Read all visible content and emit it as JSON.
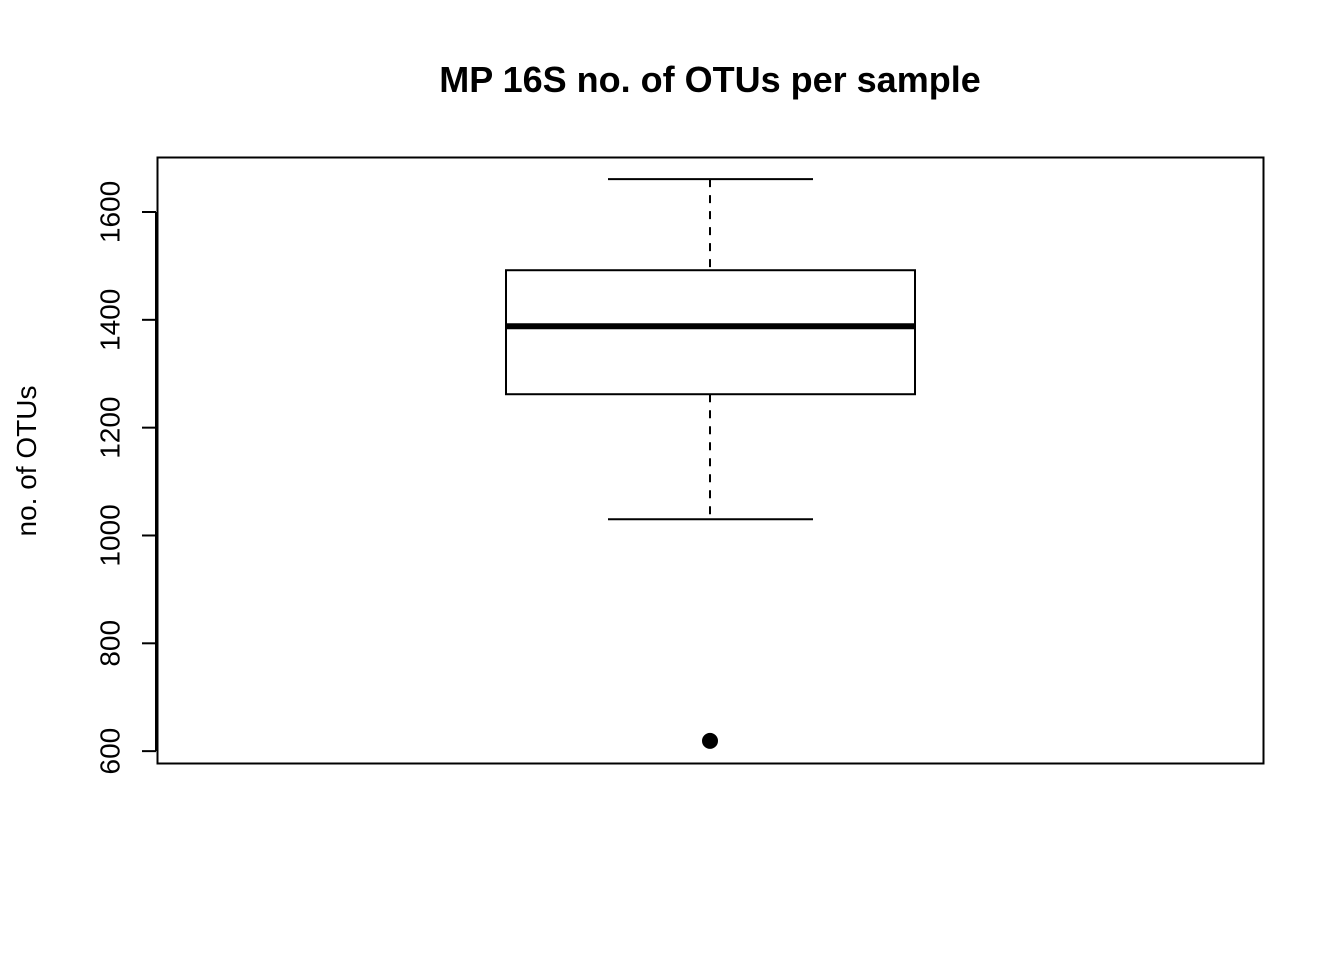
{
  "chart_data": {
    "type": "boxplot",
    "title": "MP 16S no. of OTUs per sample",
    "xlabel": "",
    "ylabel": "no. of OTUs",
    "ylim": [
      578,
      1702
    ],
    "yticks": [
      600,
      800,
      1000,
      1200,
      1400,
      1600
    ],
    "ytick_labels": [
      "600",
      "800",
      "1000",
      "1200",
      "1400",
      "1600"
    ],
    "grid": false,
    "box": {
      "whisker_low": 1030,
      "q1": 1262,
      "median": 1388,
      "q3": 1492,
      "whisker_high": 1661,
      "outliers": [
        619
      ]
    },
    "colors": {
      "stroke": "#000000",
      "fill": "#ffffff",
      "outlier": "#000000"
    }
  }
}
